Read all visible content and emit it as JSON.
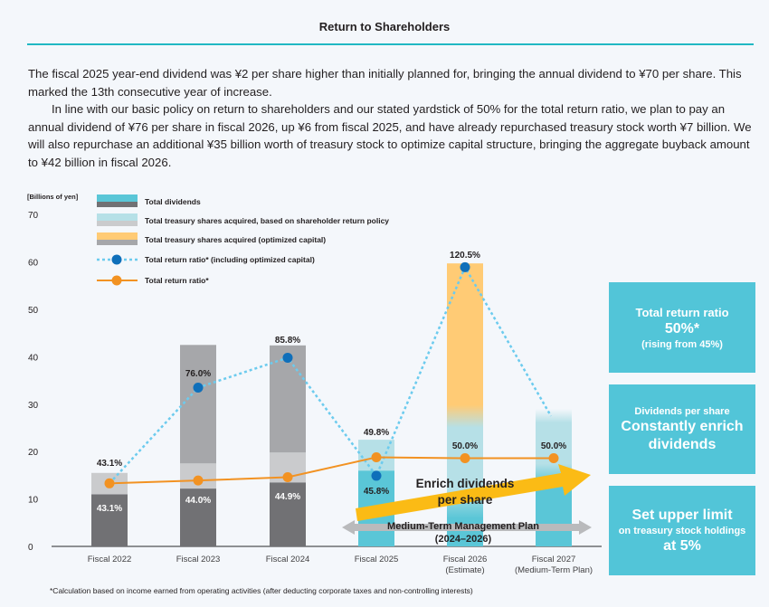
{
  "header": {
    "title": "Return to Shareholders"
  },
  "body": {
    "paragraph1": "The fiscal 2025 year-end dividend was ¥2 per share higher than initially planned for, bringing the annual dividend to ¥70 per share. This marked the 13th consecutive year of increase.",
    "paragraph2": "In line with our basic policy on return to shareholders and our stated yardstick of 50% for the total return ratio, we plan to pay an annual dividend of ¥76 per share in fiscal 2026, up ¥6 from fiscal 2025, and have already repurchased treasury stock worth ¥7 billion. We will also repurchase an additional ¥35 billion worth of treasury stock to optimize capital structure, bringing the aggregate buyback amount to ¥42 billion in fiscal 2026."
  },
  "colors": {
    "dividends_past": "#717174",
    "dividends_future": "#5ac6d7",
    "buyback_policy_past": "#cacbcd",
    "buyback_policy_future": "#b6e0e7",
    "buyback_optimized_past": "#a6a7aa",
    "buyback_optimized_future": "#ffcb75",
    "ratio_incl_line": "#6ccbee",
    "ratio_incl_marker": "#0f6fba",
    "ratio_line": "#f29222",
    "arrow_enrich": "#fbbb15",
    "arrow_plan": "#b9babc",
    "callout_bg": "#52c5d8",
    "accent_rule": "#21b8c3"
  },
  "chart_data": {
    "type": "bar",
    "title": "",
    "ylabel": "[Billions of yen]",
    "xlabel": "",
    "ylim": [
      0,
      70
    ],
    "yticks": [
      0,
      10,
      20,
      30,
      40,
      50,
      60,
      70
    ],
    "categories": [
      [
        "Fiscal 2022"
      ],
      [
        "Fiscal 2023"
      ],
      [
        "Fiscal 2024"
      ],
      [
        "Fiscal 2025"
      ],
      [
        "Fiscal 2026",
        "(Estimate)"
      ],
      [
        "Fiscal 2027",
        "(Medium-Term Plan)"
      ]
    ],
    "stacked": true,
    "series": [
      {
        "name": "Total dividends",
        "values": [
          11.0,
          12.2,
          13.5,
          16.0,
          18.0,
          19.0
        ]
      },
      {
        "name": "Total treasury shares acquired, based on shareholder return policy",
        "values": [
          4.5,
          5.3,
          6.3,
          6.5,
          7.0,
          10.0
        ]
      },
      {
        "name": "Total treasury shares acquired (optimized capital)",
        "values": [
          0,
          25.0,
          22.6,
          0,
          34.7,
          0
        ]
      }
    ],
    "lines": [
      {
        "name": "Total return ratio* (including optimized capital)",
        "style": "dotted",
        "values": [
          13.3,
          33.5,
          39.8,
          14.9,
          58.9,
          null
        ],
        "labels": [
          "43.1%",
          "76.0%",
          "85.8%",
          "45.8%",
          "120.5%",
          null
        ],
        "trailing_to_bar": 5
      },
      {
        "name": "Total return ratio*",
        "style": "solid",
        "values": [
          13.3,
          13.9,
          14.6,
          18.8,
          18.6,
          18.6
        ],
        "labels": [
          "43.1%",
          "44.0%",
          "44.9%",
          "49.8%",
          "50.0%",
          "50.0%"
        ]
      }
    ],
    "legend": {
      "position": "top-left"
    },
    "grid": false,
    "annotations": {
      "enrich_arrow": [
        "Enrich dividends",
        "per share"
      ],
      "plan_arrow": [
        "Medium-Term Management Plan",
        "(2024–2026)"
      ]
    }
  },
  "callouts": [
    {
      "lines": [
        "Total return ratio",
        "50%*",
        "(rising from 45%)"
      ]
    },
    {
      "lines": [
        "Dividends per share",
        "Constantly enrich",
        "dividends"
      ]
    },
    {
      "lines": [
        "Set upper limit",
        "on treasury stock holdings",
        "at 5%"
      ]
    }
  ],
  "footnote": "*Calculation based on income earned from operating activities (after deducting corporate taxes and non-controlling interests)"
}
